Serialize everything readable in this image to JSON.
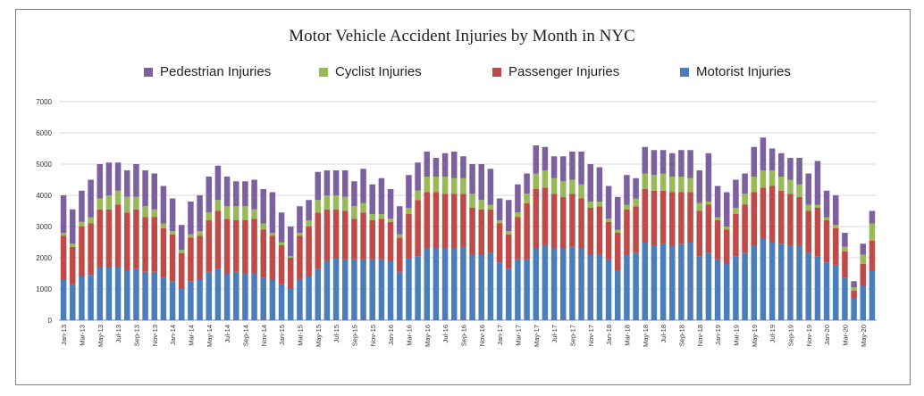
{
  "chart_data": {
    "type": "bar",
    "stacked": true,
    "title": "Motor Vehicle Accident Injuries by Month in NYC",
    "xlabel": "",
    "ylabel": "",
    "ylim": [
      0,
      7000
    ],
    "yticks": [
      0,
      1000,
      2000,
      3000,
      4000,
      5000,
      6000,
      7000
    ],
    "ytick_labels": [
      "0",
      "1000",
      "2000",
      "3000",
      "4000",
      "5000",
      "6000",
      "7000"
    ],
    "grid": true,
    "legend_position": "top",
    "legend_order": [
      "Pedestrian Injuries",
      "Cyclist Injuries",
      "Passenger Injuries",
      "Motorist Injuries"
    ],
    "categories": [
      "Jan-13",
      "Feb-13",
      "Mar-13",
      "Apr-13",
      "May-13",
      "Jun-13",
      "Jul-13",
      "Aug-13",
      "Sep-13",
      "Oct-13",
      "Nov-13",
      "Dec-13",
      "Jan-14",
      "Feb-14",
      "Mar-14",
      "Apr-14",
      "May-14",
      "Jun-14",
      "Jul-14",
      "Aug-14",
      "Sep-14",
      "Oct-14",
      "Nov-14",
      "Dec-14",
      "Jan-15",
      "Feb-15",
      "Mar-15",
      "Apr-15",
      "May-15",
      "Jun-15",
      "Jul-15",
      "Aug-15",
      "Sep-15",
      "Oct-15",
      "Nov-15",
      "Dec-15",
      "Jan-16",
      "Feb-16",
      "Mar-16",
      "Apr-16",
      "May-16",
      "Jun-16",
      "Jul-16",
      "Aug-16",
      "Sep-16",
      "Oct-16",
      "Nov-16",
      "Dec-16",
      "Jan-17",
      "Feb-17",
      "Mar-17",
      "Apr-17",
      "May-17",
      "Jun-17",
      "Jul-17",
      "Aug-17",
      "Sep-17",
      "Oct-17",
      "Nov-17",
      "Dec-17",
      "Jan-18",
      "Feb-18",
      "Mar-18",
      "Apr-18",
      "May-18",
      "Jun-18",
      "Jul-18",
      "Aug-18",
      "Sep-18",
      "Oct-18",
      "Nov-18",
      "Dec-18",
      "Jan-19",
      "Feb-19",
      "Mar-19",
      "Apr-19",
      "May-19",
      "Jun-19",
      "Jul-19",
      "Aug-19",
      "Sep-19",
      "Oct-19",
      "Nov-19",
      "Dec-19",
      "Jan-20",
      "Feb-20",
      "Mar-20",
      "Apr-20",
      "May-20",
      "Jun-20"
    ],
    "xtick_labels": [
      "Jan-13",
      "Mar-13",
      "May-13",
      "Jul-13",
      "Sep-13",
      "Nov-13",
      "Jan-14",
      "Mar-14",
      "May-14",
      "Jul-14",
      "Sep-14",
      "Nov-14",
      "Jan-15",
      "Mar-15",
      "May-15",
      "Jul-15",
      "Sep-15",
      "Nov-15",
      "Jan-16",
      "Mar-16",
      "May-16",
      "Jul-16",
      "Sep-16",
      "Nov-16",
      "Jan-17",
      "Mar-17",
      "May-17",
      "Jul-17",
      "Sep-17",
      "Nov-17",
      "Jan-18",
      "Mar-18",
      "May-18",
      "Jul-18",
      "Sep-18",
      "Nov-18",
      "Jan-19",
      "Mar-19",
      "May-19",
      "Jul-19",
      "Sep-19",
      "Nov-19",
      "Jan-20",
      "Mar-20",
      "May-20"
    ],
    "series": [
      {
        "name": "Motorist Injuries",
        "color": "#4a7ebb",
        "values": [
          1300,
          1150,
          1400,
          1450,
          1700,
          1700,
          1700,
          1600,
          1650,
          1550,
          1550,
          1350,
          1250,
          1000,
          1250,
          1300,
          1550,
          1650,
          1500,
          1550,
          1500,
          1500,
          1350,
          1300,
          1150,
          1000,
          1300,
          1400,
          1650,
          1900,
          2000,
          1950,
          1950,
          1950,
          1950,
          1950,
          1900,
          1550,
          2000,
          2050,
          2300,
          2300,
          2300,
          2300,
          2350,
          2100,
          2100,
          2150,
          1850,
          1650,
          1950,
          1950,
          2300,
          2400,
          2300,
          2300,
          2350,
          2300,
          2100,
          2100,
          1950,
          1600,
          2100,
          2150,
          2500,
          2400,
          2450,
          2400,
          2450,
          2500,
          2050,
          2150,
          1950,
          1800,
          2050,
          2150,
          2400,
          2600,
          2500,
          2450,
          2400,
          2400,
          2150,
          2050,
          1850,
          1750,
          1350,
          700,
          1100,
          1600
        ]
      },
      {
        "name": "Passenger Injuries",
        "color": "#be4b48",
        "values": [
          1400,
          1200,
          1600,
          1650,
          1850,
          1850,
          2000,
          1850,
          1900,
          1750,
          1750,
          1600,
          1500,
          1150,
          1400,
          1400,
          1650,
          1850,
          1750,
          1650,
          1700,
          1750,
          1550,
          1400,
          1250,
          1000,
          1400,
          1600,
          1800,
          1650,
          1550,
          1550,
          1300,
          1500,
          1250,
          1300,
          1250,
          1100,
          1400,
          1800,
          1800,
          1800,
          1750,
          1750,
          1700,
          1500,
          1450,
          1400,
          1250,
          1100,
          1350,
          1800,
          1900,
          1850,
          1750,
          1650,
          1700,
          1600,
          1500,
          1550,
          1200,
          1200,
          1450,
          1500,
          1700,
          1750,
          1700,
          1700,
          1650,
          1600,
          1450,
          1550,
          1250,
          1100,
          1350,
          1550,
          1700,
          1650,
          1800,
          1700,
          1650,
          1550,
          1350,
          1550,
          1350,
          1200,
          850,
          250,
          700,
          950
        ]
      },
      {
        "name": "Cyclist Injuries",
        "color": "#98b954",
        "values": [
          100,
          100,
          150,
          200,
          350,
          450,
          450,
          500,
          400,
          350,
          250,
          150,
          100,
          100,
          100,
          150,
          250,
          350,
          400,
          450,
          450,
          300,
          200,
          100,
          100,
          50,
          100,
          200,
          400,
          450,
          450,
          450,
          400,
          300,
          200,
          150,
          100,
          100,
          200,
          300,
          500,
          500,
          550,
          500,
          500,
          450,
          300,
          150,
          100,
          100,
          150,
          300,
          500,
          550,
          500,
          500,
          450,
          450,
          200,
          150,
          100,
          100,
          150,
          250,
          500,
          500,
          550,
          500,
          500,
          450,
          250,
          100,
          100,
          100,
          200,
          350,
          500,
          550,
          500,
          450,
          450,
          400,
          200,
          100,
          100,
          100,
          150,
          100,
          300,
          550
        ]
      },
      {
        "name": "Pedestrian Injuries",
        "color": "#7d60a0",
        "values": [
          1200,
          1100,
          1000,
          1200,
          1100,
          1050,
          900,
          850,
          1050,
          1150,
          1150,
          1200,
          1050,
          800,
          1050,
          1150,
          1150,
          1100,
          950,
          800,
          800,
          950,
          1100,
          1300,
          950,
          950,
          850,
          650,
          900,
          800,
          800,
          850,
          800,
          1100,
          950,
          1150,
          950,
          900,
          1050,
          900,
          800,
          600,
          750,
          850,
          700,
          950,
          1150,
          1150,
          700,
          1000,
          900,
          650,
          900,
          750,
          700,
          800,
          900,
          1050,
          1200,
          1100,
          1050,
          1050,
          950,
          650,
          850,
          800,
          750,
          750,
          850,
          900,
          1050,
          1550,
          1000,
          1100,
          900,
          650,
          950,
          1050,
          700,
          750,
          700,
          850,
          1000,
          1400,
          850,
          950,
          450,
          200,
          350,
          400
        ]
      }
    ]
  }
}
